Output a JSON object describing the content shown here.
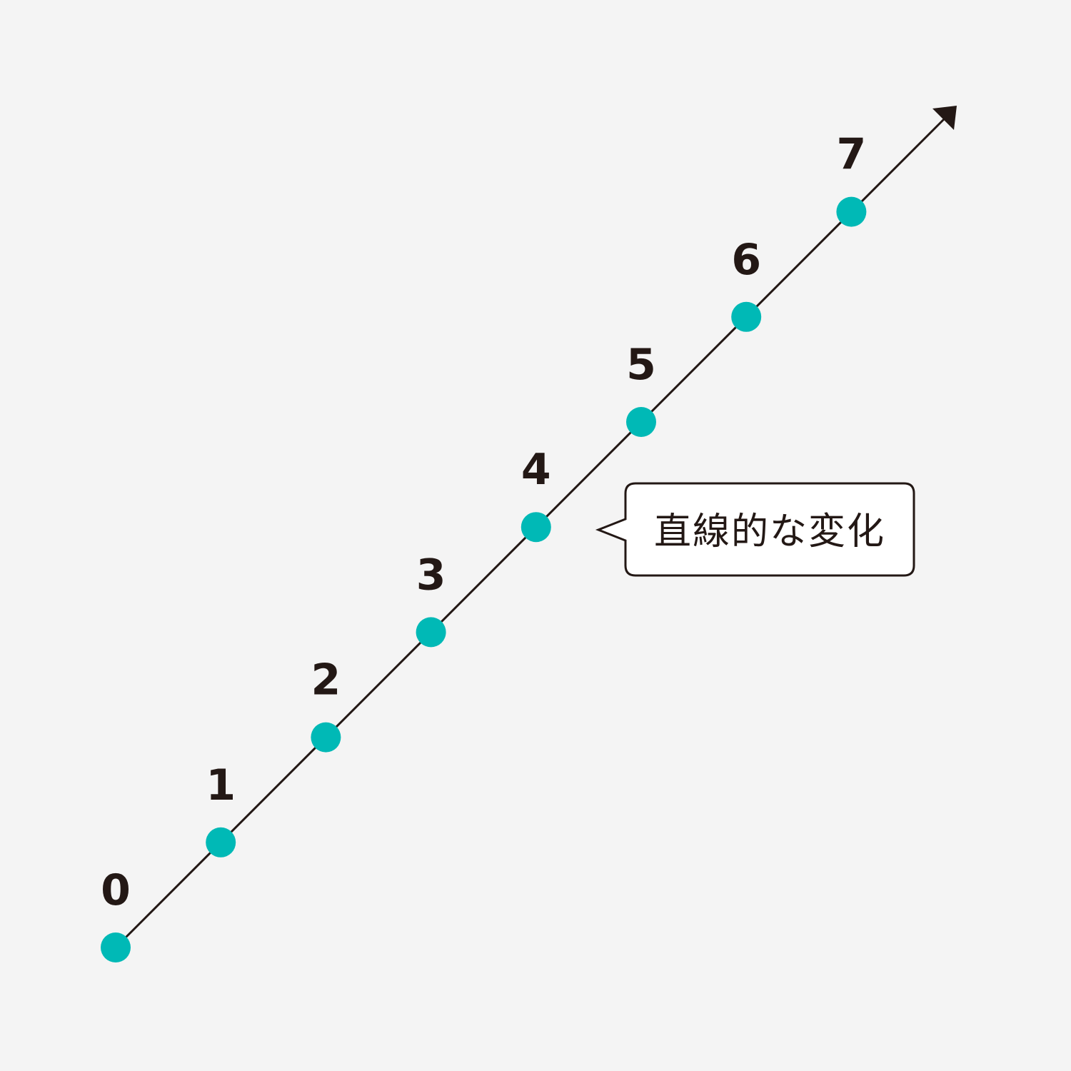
{
  "colors": {
    "background": "#f4f4f4",
    "line": "#231815",
    "point": "#00b9b6",
    "callout_fill": "#ffffff"
  },
  "icons": {
    "arrowhead": "arrow-up-right-icon"
  },
  "points": [
    {
      "step": 0,
      "label": "0"
    },
    {
      "step": 1,
      "label": "1"
    },
    {
      "step": 2,
      "label": "2"
    },
    {
      "step": 3,
      "label": "3"
    },
    {
      "step": 4,
      "label": "4"
    },
    {
      "step": 5,
      "label": "5"
    },
    {
      "step": 6,
      "label": "6"
    },
    {
      "step": 7,
      "label": "7"
    }
  ],
  "callout": {
    "text": "直線的な変化"
  }
}
